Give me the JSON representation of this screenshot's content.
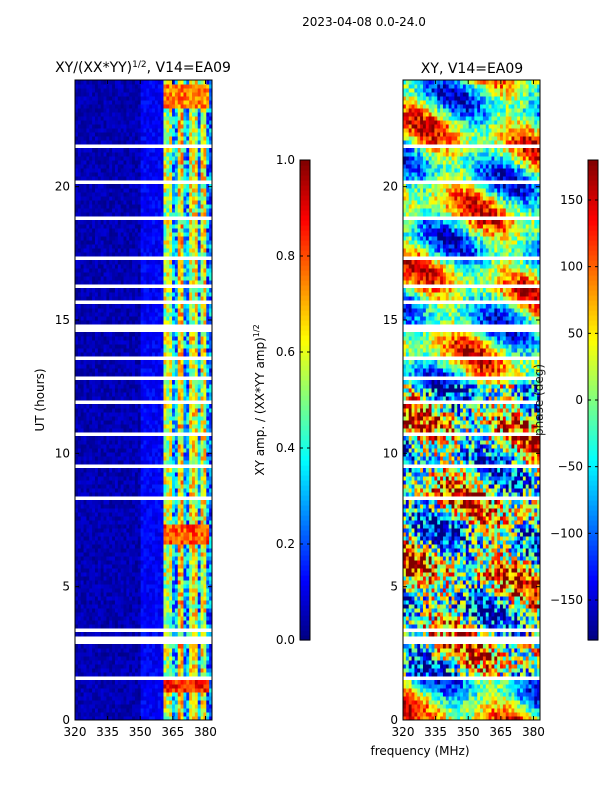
{
  "figure": {
    "title": "2023-04-08 0.0-24.0",
    "xlabel": "frequency (MHz)"
  },
  "colors": {
    "jet": [
      "#00007f",
      "#0000ff",
      "#0080ff",
      "#00ffff",
      "#80ff80",
      "#ffff00",
      "#ff8000",
      "#ff0000",
      "#7f0000"
    ],
    "gap": "#ffffff"
  },
  "chart_data": [
    {
      "type": "heatmap",
      "title_prefix": "XY/(XX*YY)",
      "title_exp": "1/2",
      "title_suffix": ", V14=EA09",
      "xlabel": "",
      "ylabel": "UT (hours)",
      "xlim": [
        320,
        383
      ],
      "ylim": [
        0,
        24
      ],
      "xticks": [
        320,
        335,
        350,
        365,
        380
      ],
      "yticks": [
        0,
        5,
        10,
        15,
        20
      ],
      "colorbar": {
        "label_prefix": "XY amp. / (XX*YY amp)",
        "label_exp": "1/2",
        "range": [
          0.0,
          1.0
        ],
        "ticks": [
          0.0,
          0.2,
          0.4,
          0.6,
          0.8,
          1.0
        ],
        "tick_labels": [
          "0.0",
          "0.2",
          "0.4",
          "0.6",
          "0.8",
          "1.0"
        ]
      },
      "gaps_hours": [
        [
          23.05,
          23.15
        ],
        [
          22.75,
          22.85
        ],
        [
          22.15,
          22.25
        ],
        [
          21.45,
          21.55
        ],
        [
          20.15,
          20.25
        ],
        [
          19.45,
          19.55
        ],
        [
          18.75,
          18.85
        ],
        [
          17.95,
          18.05
        ],
        [
          17.25,
          17.35
        ],
        [
          16.25,
          16.35
        ],
        [
          15.55,
          15.75
        ],
        [
          14.6,
          14.8
        ],
        [
          13.5,
          13.6
        ],
        [
          12.75,
          12.85
        ],
        [
          11.9,
          12.0
        ],
        [
          10.7,
          10.8
        ],
        [
          9.45,
          9.55
        ],
        [
          8.25,
          8.35
        ],
        [
          7.45,
          7.55
        ],
        [
          5.5,
          5.6
        ],
        [
          3.3,
          3.4
        ],
        [
          2.8,
          3.1
        ],
        [
          1.45,
          1.6
        ],
        [
          0.7,
          0.8
        ]
      ],
      "bands": [
        {
          "f_start": 320,
          "f_end": 350,
          "level": 0.05
        },
        {
          "f_start": 350,
          "f_end": 361,
          "level": 0.12
        },
        {
          "f_start": 361,
          "f_end": 365,
          "level": 0.55
        },
        {
          "f_start": 365,
          "f_end": 367,
          "level": 0.3
        },
        {
          "f_start": 367,
          "f_end": 370,
          "level": 0.65
        },
        {
          "f_start": 370,
          "f_end": 372,
          "level": 0.3
        },
        {
          "f_start": 372,
          "f_end": 376,
          "level": 0.6
        },
        {
          "f_start": 376,
          "f_end": 378,
          "level": 0.3
        },
        {
          "f_start": 378,
          "f_end": 381,
          "level": 0.6
        },
        {
          "f_start": 381,
          "f_end": 383,
          "level": 0.25
        }
      ],
      "hot_spots": [
        {
          "f_start": 361,
          "f_end": 382,
          "t_start": 6.6,
          "t_end": 7.3,
          "level": 0.8
        },
        {
          "f_start": 361,
          "f_end": 382,
          "t_start": 1.1,
          "t_end": 1.45,
          "level": 0.85
        },
        {
          "f_start": 361,
          "f_end": 382,
          "t_start": 22.9,
          "t_end": 23.8,
          "level": 0.75
        }
      ]
    },
    {
      "type": "heatmap",
      "title": "XY, V14=EA09",
      "xlabel": "",
      "ylabel": "",
      "xlim": [
        320,
        383
      ],
      "ylim": [
        0,
        24
      ],
      "xticks": [
        320,
        335,
        350,
        365,
        380
      ],
      "yticks": [
        0,
        5,
        10,
        15,
        20
      ],
      "colorbar": {
        "label": "phase (deg)",
        "range": [
          -180,
          180
        ],
        "ticks": [
          -150,
          -100,
          -50,
          0,
          50,
          100,
          150
        ],
        "tick_labels": [
          "−150",
          "−100",
          "−50",
          "0",
          "50",
          "100",
          "150"
        ]
      },
      "gaps_hours": [
        [
          23.05,
          23.15
        ],
        [
          22.75,
          22.85
        ],
        [
          22.15,
          22.25
        ],
        [
          21.45,
          21.55
        ],
        [
          20.15,
          20.25
        ],
        [
          19.45,
          19.55
        ],
        [
          18.75,
          18.85
        ],
        [
          17.95,
          18.05
        ],
        [
          17.25,
          17.35
        ],
        [
          16.25,
          16.35
        ],
        [
          15.55,
          15.75
        ],
        [
          14.6,
          14.8
        ],
        [
          13.5,
          13.6
        ],
        [
          12.75,
          12.85
        ],
        [
          11.9,
          12.0
        ],
        [
          10.7,
          10.8
        ],
        [
          9.45,
          9.55
        ],
        [
          8.25,
          8.35
        ],
        [
          7.45,
          7.55
        ],
        [
          5.5,
          5.6
        ],
        [
          3.3,
          3.4
        ],
        [
          2.8,
          3.1
        ],
        [
          1.45,
          1.6
        ],
        [
          0.7,
          0.8
        ]
      ],
      "noise_bands_hours": [
        [
          1.6,
          12.6
        ]
      ]
    }
  ]
}
